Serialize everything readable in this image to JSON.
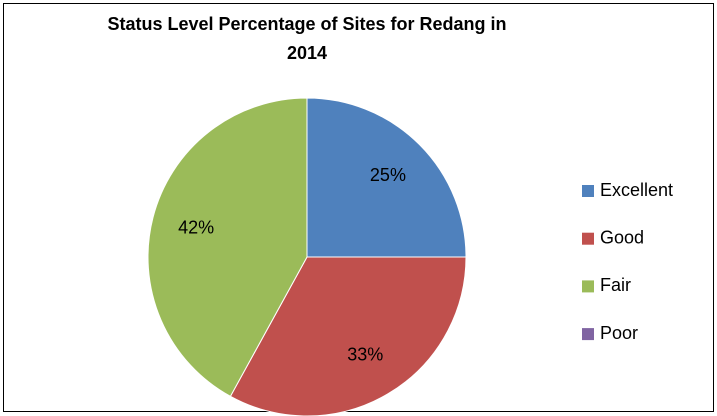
{
  "chart_data": {
    "type": "pie",
    "title": "Status Level Percentage of Sites for Redang in 2014",
    "categories": [
      "Excellent",
      "Good",
      "Fair",
      "Poor"
    ],
    "values": [
      25,
      33,
      42,
      0
    ],
    "value_labels": [
      "25%",
      "33%",
      "42%",
      null
    ],
    "colors": [
      "#4f81bd",
      "#c0504d",
      "#9bbb59",
      "#8064a2"
    ],
    "legend": "right"
  }
}
